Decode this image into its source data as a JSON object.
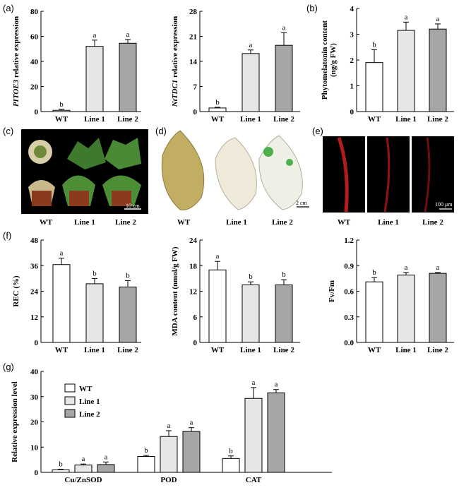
{
  "panel_labels": {
    "a": "(a)",
    "b": "(b)",
    "c": "(c)",
    "d": "(d)",
    "e": "(e)",
    "f": "(f)",
    "g": "(g)"
  },
  "groups": [
    "WT",
    "Line 1",
    "Line 2"
  ],
  "colors": {
    "wt": "#ffffff",
    "line1": "#e6e6e6",
    "line2": "#a6a6a6",
    "stroke": "#000000",
    "photo_bg": "#000000"
  },
  "photos": {
    "c": {
      "labels": [
        "WT",
        "Line 1",
        "Line 2"
      ],
      "scale": "10 cm"
    },
    "d": {
      "labels": [
        "WT",
        "Line 1",
        "Line 2"
      ],
      "scale": "2 cm"
    },
    "e": {
      "labels": [
        "WT",
        "Line 1",
        "Line 2"
      ],
      "scale": "100 μm"
    }
  },
  "chart_data": [
    {
      "id": "a1",
      "type": "bar",
      "categories": [
        "WT",
        "Line 1",
        "Line 2"
      ],
      "values": [
        1,
        52,
        54.5
      ],
      "errors": [
        0.8,
        5,
        3
      ],
      "letters": [
        "b",
        "a",
        "a"
      ],
      "ylabel": "PITOE3 relative expression",
      "ylabel_italic_part": "PITOE3",
      "ylabel_rest": " relative expression",
      "ylim": [
        0,
        80
      ],
      "yticks": [
        0,
        20,
        40,
        60,
        80
      ]
    },
    {
      "id": "a2",
      "type": "bar",
      "categories": [
        "WT",
        "Line 1",
        "Line 2"
      ],
      "values": [
        1,
        16.2,
        18.5
      ],
      "errors": [
        0.2,
        1,
        3.5
      ],
      "letters": [
        "b",
        "a",
        "a"
      ],
      "ylabel": "NtTDC1 relative expression",
      "ylabel_italic_part": "NtTDC1",
      "ylabel_rest": " relative expression",
      "ylim": [
        0,
        28
      ],
      "yticks": [
        0,
        7,
        14,
        21,
        28
      ]
    },
    {
      "id": "b",
      "type": "bar",
      "categories": [
        "WT",
        "Line 1",
        "Line 2"
      ],
      "values": [
        1.9,
        3.15,
        3.2
      ],
      "errors": [
        0.5,
        0.32,
        0.2
      ],
      "letters": [
        "b",
        "a",
        "a"
      ],
      "ylabel": "Phytomelatonin content",
      "ylabel2": "(ng/g FW)",
      "ylim": [
        0,
        4
      ],
      "yticks": [
        0,
        1,
        2,
        3,
        4
      ]
    },
    {
      "id": "f1",
      "type": "bar",
      "categories": [
        "WT",
        "Line 1",
        "Line 2"
      ],
      "values": [
        36.5,
        27.5,
        26
      ],
      "errors": [
        3,
        2.5,
        3
      ],
      "letters": [
        "a",
        "b",
        "b"
      ],
      "ylabel": "REC (%)",
      "ylim": [
        0,
        48
      ],
      "yticks": [
        0,
        12,
        24,
        36,
        48
      ]
    },
    {
      "id": "f2",
      "type": "bar",
      "categories": [
        "WT",
        "Line 1",
        "Line 2"
      ],
      "values": [
        17,
        13.5,
        13.5
      ],
      "errors": [
        2,
        0.7,
        1.2
      ],
      "letters": [
        "a",
        "b",
        "b"
      ],
      "ylabel": "MDA content (nmol/g FW)",
      "ylim": [
        0,
        24
      ],
      "yticks": [
        0,
        6,
        12,
        18,
        24
      ]
    },
    {
      "id": "f3",
      "type": "bar",
      "categories": [
        "WT",
        "Line 1",
        "Line 2"
      ],
      "values": [
        0.71,
        0.79,
        0.81
      ],
      "errors": [
        0.05,
        0.03,
        0.01
      ],
      "letters": [
        "b",
        "a",
        "a"
      ],
      "ylabel": "Fv/Fm",
      "ylim": [
        0,
        1.2
      ],
      "yticks": [
        "0.0",
        "0.3",
        "0.6",
        "0.9",
        "1.2"
      ]
    },
    {
      "id": "g",
      "type": "bar",
      "categories": [
        "Cu/ZnSOD",
        "POD",
        "CAT"
      ],
      "series": [
        {
          "name": "WT",
          "values": [
            1,
            6.3,
            5.5
          ],
          "errors": [
            0.2,
            0.4,
            1
          ],
          "letters": [
            "b",
            "b",
            "b"
          ]
        },
        {
          "name": "Line 1",
          "values": [
            2.9,
            14.2,
            29.3
          ],
          "errors": [
            0.4,
            2.3,
            4.3
          ],
          "letters": [
            "a",
            "a",
            "a"
          ]
        },
        {
          "name": "Line 2",
          "values": [
            3.1,
            16.2,
            31.5
          ],
          "errors": [
            1,
            1.5,
            1.3
          ],
          "letters": [
            "a",
            "a",
            "a"
          ]
        }
      ],
      "ylabel": "Relative expression level",
      "ylim": [
        0,
        40
      ],
      "yticks": [
        0,
        10,
        20,
        30,
        40
      ]
    }
  ]
}
